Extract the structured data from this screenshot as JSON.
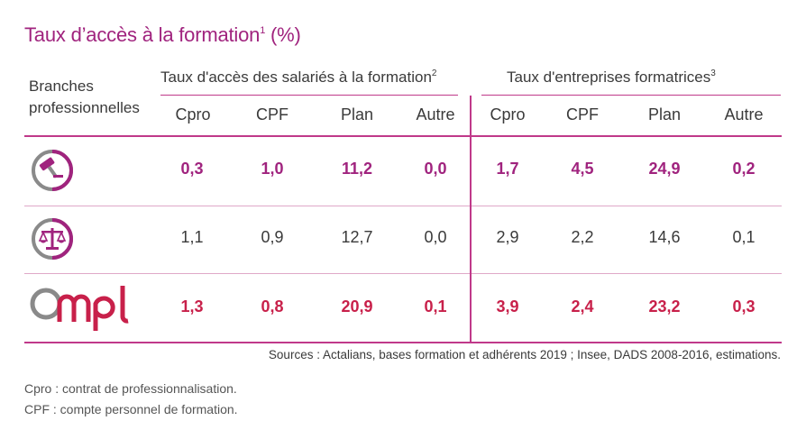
{
  "title": {
    "text": "Taux d’accès à la formation",
    "sup": "1",
    "unit": "(%)"
  },
  "header": {
    "branches_line1": "Branches",
    "branches_line2": "professionnelles",
    "group1": "Taux d'accès des salariés à la formation",
    "group1_sup": "2",
    "group2": "Taux d'entreprises formatrices",
    "group2_sup": "3",
    "columns": [
      "Cpro",
      "CPF",
      "Plan",
      "Autre",
      "Cpro",
      "CPF",
      "Plan",
      "Autre"
    ]
  },
  "rows": [
    {
      "icon": "gavel-icon",
      "color": "#a0237e",
      "values": [
        "0,3",
        "1,0",
        "11,2",
        "0,0",
        "1,7",
        "4,5",
        "24,9",
        "0,2"
      ]
    },
    {
      "icon": "scales-icon",
      "color": "#3a3a3a",
      "values": [
        "1,1",
        "0,9",
        "12,7",
        "0,0",
        "2,9",
        "2,2",
        "14,6",
        "0,1"
      ]
    },
    {
      "icon": "ompl-logo",
      "logo_text": "Ompl",
      "color": "#c8204a",
      "values": [
        "1,3",
        "0,8",
        "20,9",
        "0,1",
        "3,9",
        "2,4",
        "23,2",
        "0,3"
      ]
    }
  ],
  "sources": "Sources : Actalians, bases formation et adhérents 2019 ; Insee, DADS 2008-2016, estimations.",
  "notes": [
    "Cpro : contrat de professionnalisation.",
    "CPF : compte personnel de formation."
  ],
  "colors": {
    "accent": "#a0237e",
    "ompl": "#c8204a",
    "rule": "#c0398a"
  },
  "chart_data": {
    "type": "table",
    "title": "Taux d’accès à la formation (%)",
    "column_groups": [
      {
        "name": "Taux d'accès des salariés à la formation",
        "columns": [
          "Cpro",
          "CPF",
          "Plan",
          "Autre"
        ]
      },
      {
        "name": "Taux d'entreprises formatrices",
        "columns": [
          "Cpro",
          "CPF",
          "Plan",
          "Autre"
        ]
      }
    ],
    "row_header": "Branches professionnelles",
    "rows": [
      {
        "branch": "gavel-icon",
        "values": [
          0.3,
          1.0,
          11.2,
          0.0,
          1.7,
          4.5,
          24.9,
          0.2
        ]
      },
      {
        "branch": "scales-icon",
        "values": [
          1.1,
          0.9,
          12.7,
          0.0,
          2.9,
          2.2,
          14.6,
          0.1
        ]
      },
      {
        "branch": "Ompl",
        "values": [
          1.3,
          0.8,
          20.9,
          0.1,
          3.9,
          2.4,
          23.2,
          0.3
        ]
      }
    ]
  }
}
